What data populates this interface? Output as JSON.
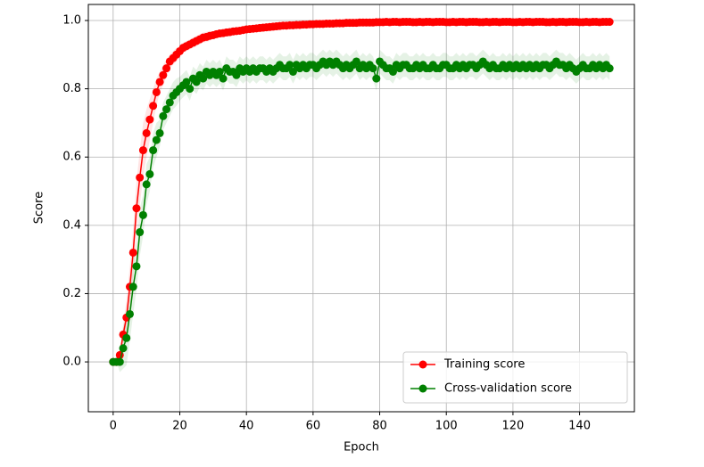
{
  "chart_data": {
    "type": "line",
    "x_label": "Epoch",
    "y_label": "Score",
    "x": [
      0,
      1,
      2,
      3,
      4,
      5,
      6,
      7,
      8,
      9,
      10,
      11,
      12,
      13,
      14,
      15,
      16,
      17,
      18,
      19,
      20,
      21,
      22,
      23,
      24,
      25,
      26,
      27,
      28,
      29,
      30,
      31,
      32,
      33,
      34,
      35,
      36,
      37,
      38,
      39,
      40,
      41,
      42,
      43,
      44,
      45,
      46,
      47,
      48,
      49,
      50,
      51,
      52,
      53,
      54,
      55,
      56,
      57,
      58,
      59,
      60,
      61,
      62,
      63,
      64,
      65,
      66,
      67,
      68,
      69,
      70,
      71,
      72,
      73,
      74,
      75,
      76,
      77,
      78,
      79,
      80,
      81,
      82,
      83,
      84,
      85,
      86,
      87,
      88,
      89,
      90,
      91,
      92,
      93,
      94,
      95,
      96,
      97,
      98,
      99,
      100,
      101,
      102,
      103,
      104,
      105,
      106,
      107,
      108,
      109,
      110,
      111,
      112,
      113,
      114,
      115,
      116,
      117,
      118,
      119,
      120,
      121,
      122,
      123,
      124,
      125,
      126,
      127,
      128,
      129,
      130,
      131,
      132,
      133,
      134,
      135,
      136,
      137,
      138,
      139,
      140,
      141,
      142,
      143,
      144,
      145,
      146,
      147,
      148,
      149
    ],
    "series": [
      {
        "name": "Training score",
        "color": "#ff0000",
        "values": [
          0,
          0,
          0.02,
          0.08,
          0.13,
          0.22,
          0.32,
          0.45,
          0.54,
          0.62,
          0.67,
          0.71,
          0.75,
          0.79,
          0.82,
          0.84,
          0.86,
          0.88,
          0.89,
          0.9,
          0.91,
          0.92,
          0.925,
          0.93,
          0.935,
          0.94,
          0.945,
          0.95,
          0.952,
          0.955,
          0.957,
          0.96,
          0.962,
          0.963,
          0.965,
          0.966,
          0.968,
          0.969,
          0.97,
          0.972,
          0.974,
          0.975,
          0.976,
          0.977,
          0.978,
          0.979,
          0.98,
          0.981,
          0.982,
          0.983,
          0.984,
          0.985,
          0.985,
          0.986,
          0.986,
          0.987,
          0.987,
          0.988,
          0.988,
          0.989,
          0.989,
          0.99,
          0.99,
          0.99,
          0.991,
          0.991,
          0.991,
          0.992,
          0.992,
          0.992,
          0.993,
          0.993,
          0.993,
          0.993,
          0.994,
          0.994,
          0.994,
          0.994,
          0.994,
          0.995,
          0.995,
          0.995,
          0.996,
          0.995,
          0.996,
          0.996,
          0.995,
          0.996,
          0.996,
          0.996,
          0.995,
          0.995,
          0.996,
          0.995,
          0.996,
          0.996,
          0.995,
          0.996,
          0.996,
          0.996,
          0.995,
          0.995,
          0.996,
          0.995,
          0.996,
          0.996,
          0.995,
          0.996,
          0.996,
          0.996,
          0.995,
          0.995,
          0.996,
          0.995,
          0.996,
          0.996,
          0.995,
          0.996,
          0.996,
          0.996,
          0.995,
          0.995,
          0.996,
          0.995,
          0.996,
          0.996,
          0.995,
          0.996,
          0.996,
          0.996,
          0.995,
          0.995,
          0.996,
          0.995,
          0.996,
          0.996,
          0.995,
          0.996,
          0.996,
          0.996,
          0.995,
          0.995,
          0.996,
          0.995,
          0.996,
          0.996,
          0.995,
          0.996,
          0.996,
          0.996
        ],
        "std": [
          0,
          0,
          0.01,
          0.03,
          0.05,
          0.06,
          0.07,
          0.08,
          0.08,
          0.08,
          0.07,
          0.06,
          0.05,
          0.04,
          0.03,
          0.03,
          0.025,
          0.02,
          0.02,
          0.02,
          0.015,
          0.015,
          0.015,
          0.015,
          0.015,
          0.015,
          0.015,
          0.015,
          0.015,
          0.015,
          0.01,
          0.01,
          0.01,
          0.01,
          0.01,
          0.01,
          0.01,
          0.01,
          0.01,
          0.01,
          0.008,
          0.008,
          0.008,
          0.008,
          0.008,
          0.008,
          0.008,
          0.008,
          0.008,
          0.008,
          0.008,
          0.008,
          0.008,
          0.008,
          0.008,
          0.008,
          0.008,
          0.008,
          0.008,
          0.008,
          0.005,
          0.005,
          0.005,
          0.005,
          0.005,
          0.005,
          0.005,
          0.005,
          0.005,
          0.005,
          0.005,
          0.005,
          0.005,
          0.005,
          0.005,
          0.005,
          0.005,
          0.005,
          0.005,
          0.005,
          0.005,
          0.005,
          0.005,
          0.005,
          0.005,
          0.005,
          0.005,
          0.005,
          0.005,
          0.005,
          0.005,
          0.005,
          0.005,
          0.005,
          0.005,
          0.005,
          0.005,
          0.005,
          0.005,
          0.005,
          0.005,
          0.005,
          0.005,
          0.005,
          0.005,
          0.005,
          0.005,
          0.005,
          0.005,
          0.005,
          0.005,
          0.005,
          0.005,
          0.005,
          0.005,
          0.005,
          0.005,
          0.005,
          0.005,
          0.005,
          0.005,
          0.005,
          0.005,
          0.005,
          0.005,
          0.005,
          0.005,
          0.005,
          0.005,
          0.005,
          0.005,
          0.005,
          0.005,
          0.005,
          0.005,
          0.005,
          0.005,
          0.005,
          0.005,
          0.005,
          0.005,
          0.005,
          0.005,
          0.005,
          0.005,
          0.005,
          0.005,
          0.005,
          0.005,
          0.005
        ]
      },
      {
        "name": "Cross-validation score",
        "color": "#008000",
        "values": [
          0,
          0,
          0,
          0.04,
          0.07,
          0.14,
          0.22,
          0.28,
          0.38,
          0.43,
          0.52,
          0.55,
          0.62,
          0.65,
          0.67,
          0.72,
          0.74,
          0.76,
          0.78,
          0.79,
          0.8,
          0.81,
          0.82,
          0.8,
          0.83,
          0.82,
          0.84,
          0.83,
          0.85,
          0.84,
          0.85,
          0.84,
          0.85,
          0.83,
          0.86,
          0.85,
          0.85,
          0.84,
          0.86,
          0.85,
          0.86,
          0.85,
          0.86,
          0.85,
          0.86,
          0.86,
          0.85,
          0.86,
          0.85,
          0.86,
          0.87,
          0.86,
          0.86,
          0.87,
          0.85,
          0.87,
          0.86,
          0.87,
          0.86,
          0.87,
          0.87,
          0.86,
          0.87,
          0.88,
          0.87,
          0.88,
          0.87,
          0.88,
          0.87,
          0.86,
          0.87,
          0.86,
          0.87,
          0.88,
          0.86,
          0.87,
          0.86,
          0.87,
          0.86,
          0.83,
          0.88,
          0.87,
          0.86,
          0.86,
          0.85,
          0.87,
          0.86,
          0.87,
          0.87,
          0.86,
          0.86,
          0.87,
          0.86,
          0.87,
          0.86,
          0.86,
          0.87,
          0.86,
          0.86,
          0.87,
          0.87,
          0.86,
          0.86,
          0.87,
          0.86,
          0.87,
          0.86,
          0.87,
          0.87,
          0.86,
          0.87,
          0.88,
          0.87,
          0.86,
          0.87,
          0.86,
          0.86,
          0.87,
          0.86,
          0.87,
          0.86,
          0.87,
          0.86,
          0.87,
          0.86,
          0.87,
          0.86,
          0.87,
          0.86,
          0.87,
          0.87,
          0.86,
          0.87,
          0.88,
          0.87,
          0.87,
          0.86,
          0.87,
          0.86,
          0.85,
          0.86,
          0.87,
          0.86,
          0.86,
          0.87,
          0.86,
          0.87,
          0.86,
          0.87,
          0.86
        ],
        "std": [
          0,
          0,
          0.03,
          0.06,
          0.08,
          0.08,
          0.08,
          0.07,
          0.07,
          0.06,
          0.06,
          0.05,
          0.05,
          0.05,
          0.04,
          0.04,
          0.04,
          0.04,
          0.04,
          0.04,
          0.035,
          0.035,
          0.035,
          0.035,
          0.035,
          0.035,
          0.035,
          0.035,
          0.035,
          0.035,
          0.035,
          0.035,
          0.035,
          0.035,
          0.035,
          0.035,
          0.035,
          0.035,
          0.035,
          0.035,
          0.035,
          0.035,
          0.035,
          0.035,
          0.035,
          0.035,
          0.035,
          0.035,
          0.035,
          0.035,
          0.035,
          0.035,
          0.035,
          0.035,
          0.035,
          0.035,
          0.035,
          0.035,
          0.035,
          0.035,
          0.035,
          0.035,
          0.035,
          0.035,
          0.035,
          0.035,
          0.035,
          0.035,
          0.035,
          0.035,
          0.035,
          0.035,
          0.035,
          0.035,
          0.035,
          0.035,
          0.035,
          0.035,
          0.035,
          0.035,
          0.035,
          0.035,
          0.035,
          0.035,
          0.035,
          0.035,
          0.035,
          0.035,
          0.035,
          0.035,
          0.035,
          0.035,
          0.035,
          0.035,
          0.035,
          0.035,
          0.035,
          0.035,
          0.035,
          0.035,
          0.035,
          0.035,
          0.035,
          0.035,
          0.035,
          0.035,
          0.035,
          0.035,
          0.035,
          0.035,
          0.035,
          0.035,
          0.035,
          0.035,
          0.035,
          0.035,
          0.035,
          0.035,
          0.035,
          0.035,
          0.035,
          0.035,
          0.035,
          0.035,
          0.035,
          0.035,
          0.035,
          0.035,
          0.035,
          0.035,
          0.035,
          0.035,
          0.035,
          0.035,
          0.035,
          0.035,
          0.035,
          0.035,
          0.035,
          0.035,
          0.035,
          0.035,
          0.035,
          0.035,
          0.035,
          0.035,
          0.035,
          0.035,
          0.035,
          0.035
        ]
      }
    ],
    "xlim": [
      -7.45,
      156.45
    ],
    "ylim": [
      -0.146,
      1.047
    ],
    "xticks": [
      0,
      20,
      40,
      60,
      80,
      100,
      120,
      140
    ],
    "yticks": [
      {
        "value": 0,
        "label": "0.0"
      },
      0.2,
      0.4,
      0.6,
      0.8,
      {
        "value": 1,
        "label": "1.0"
      }
    ],
    "grid": true,
    "legend": "lower right"
  }
}
